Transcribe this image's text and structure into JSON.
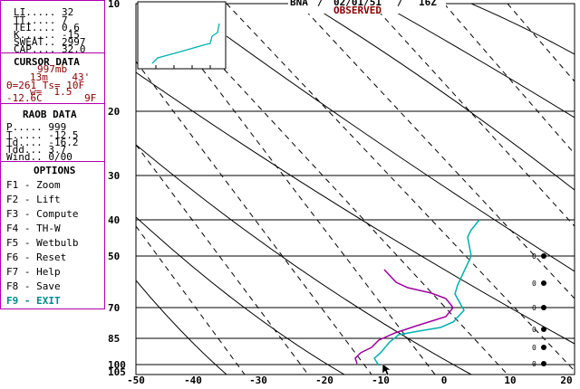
{
  "header": {
    "station": "BNA",
    "sep1": "/",
    "date": "02/01/51",
    "sep2": "/",
    "time": "16Z",
    "status": "OBSERVED"
  },
  "indices": {
    "rows": [
      {
        "label": "LI.....",
        "value": "32"
      },
      {
        "label": "TT.....",
        "value": "7"
      },
      {
        "label": "TEI....",
        "value": "0.6"
      },
      {
        "label": "K......",
        "value": "-15"
      },
      {
        "label": "SWEAT..",
        "value": "2997"
      },
      {
        "label": "CAP....",
        "value": "32.0"
      }
    ]
  },
  "cursor": {
    "title": "CURSOR DATA",
    "pressure": "997mb",
    "height_row": "13m    43'",
    "theta_row": "Θ=261 Ts= 10F",
    "w_row": "w=  1.5",
    "temp_row": "-12.6C       9F"
  },
  "raob": {
    "title": "RAOB DATA",
    "rows": [
      {
        "label": "P.....",
        "value": "999"
      },
      {
        "label": "T.....",
        "value": "-12.5"
      },
      {
        "label": "Td....",
        "value": "-16.2"
      },
      {
        "label": "Tdd...",
        "value": "3.7"
      },
      {
        "label": "Wind..",
        "value": "0/00"
      }
    ]
  },
  "options": {
    "title": "OPTIONS",
    "items": [
      {
        "key": "F1",
        "label": "Zoom"
      },
      {
        "key": "F2",
        "label": "Lift"
      },
      {
        "key": "F3",
        "label": "Compute"
      },
      {
        "key": "F4",
        "label": "TH-W"
      },
      {
        "key": "F5",
        "label": "Wetbulb"
      },
      {
        "key": "F6",
        "label": "Reset"
      },
      {
        "key": "F7",
        "label": "Help"
      },
      {
        "key": "F8",
        "label": "Save"
      },
      {
        "key": "F9",
        "label": "EXIT"
      }
    ]
  },
  "skewt": {
    "pressure_labels": [
      "10",
      "20",
      "30",
      "40",
      "50",
      "70",
      "85",
      "100",
      "105"
    ],
    "temp_labels": [
      "-50",
      "-40",
      "-30",
      "-20",
      "-10",
      "0",
      "10",
      "20"
    ],
    "wind_labels": [
      "0",
      "0",
      "0",
      "0",
      "0",
      "0"
    ],
    "colors": {
      "temperature": "#00b0b0",
      "dewpoint": "#a000a0",
      "grid": "#000000",
      "border": "#b000b0"
    }
  }
}
